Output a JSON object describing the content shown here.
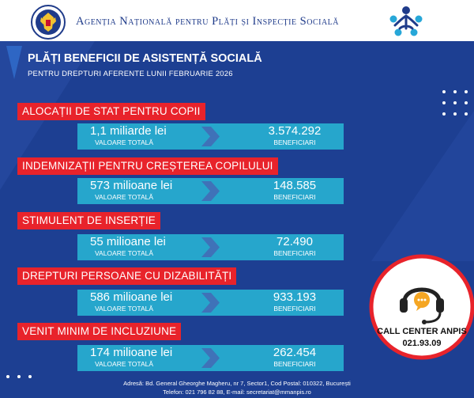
{
  "header": {
    "agency_name": "Agenția Națională pentru Plăți și Inspecție Socială"
  },
  "title": {
    "main": "PLĂȚI BENEFICII DE ASISTENȚĂ SOCIALĂ",
    "sub": "PENTRU DREPTURI AFERENTE LUNII FEBRUARIE 2026"
  },
  "sections": [
    {
      "label": "ALOCAȚII DE STAT PENTRU COPII",
      "amount": "1,1 miliarde lei",
      "amount_label": "VALOARE TOTALĂ",
      "count": "3.574.292",
      "count_label": "BENEFICIARI"
    },
    {
      "label": "INDEMNIZAȚII PENTRU CREȘTEREA COPILULUI",
      "amount": "573 milioane lei",
      "amount_label": "VALOARE TOTALĂ",
      "count": "148.585",
      "count_label": "BENEFICIARI"
    },
    {
      "label": "STIMULENT DE INSERȚIE",
      "amount": "55 milioane lei",
      "amount_label": "VALOARE TOTALĂ",
      "count": "72.490",
      "count_label": "BENEFICIARI"
    },
    {
      "label": "DREPTURI PERSOANE CU DIZABILITĂȚI",
      "amount": "586 milioane lei",
      "amount_label": "VALOARE TOTALĂ",
      "count": "933.193",
      "count_label": "BENEFICIARI"
    },
    {
      "label": "VENIT MINIM DE INCLUZIUNE",
      "amount": "174 milioane lei",
      "amount_label": "VALOARE TOTALĂ",
      "count": "262.454",
      "count_label": "BENEFICIARI"
    }
  ],
  "call_center": {
    "name": "CALL CENTER ANPIS",
    "phone": "021.93.09"
  },
  "footer": {
    "address": "Adresă: Bd. General Gheorghe Magheru, nr 7, Sector1, Cod Postal: 010322, București",
    "contact": "Telefon: 021 796 82 88, E-mail: secretariat@mmanpis.ro"
  },
  "colors": {
    "background": "#1d3f92",
    "label_red": "#e8232b",
    "bar_cyan": "#26a6cc",
    "accent_orange": "#f5a623"
  },
  "icons": [
    "romanian-coat-of-arms-icon",
    "anpis-logo-icon",
    "chevron-right-icon",
    "call-center-headset-icon"
  ]
}
